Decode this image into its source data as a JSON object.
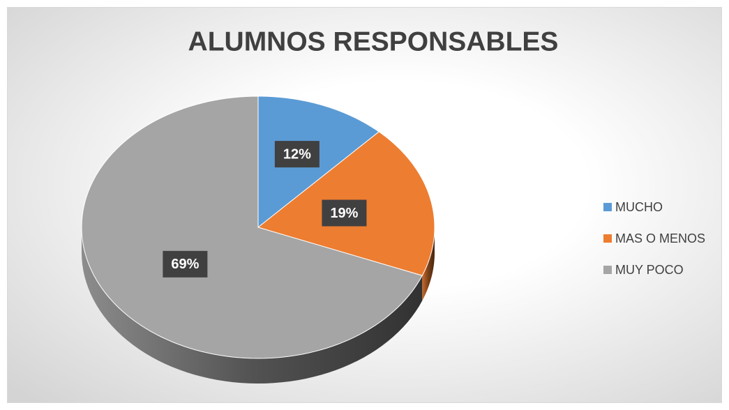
{
  "chart_data": {
    "type": "pie",
    "title": "ALUMNOS RESPONSABLES",
    "categories": [
      "MUCHO",
      "MAS O MENOS",
      "MUY POCO"
    ],
    "values": [
      12,
      19,
      69
    ],
    "value_labels": [
      "12%",
      "19%",
      "69%"
    ],
    "colors": [
      "#5b9bd5",
      "#ed7d31",
      "#a5a5a5"
    ],
    "legend": "right"
  }
}
